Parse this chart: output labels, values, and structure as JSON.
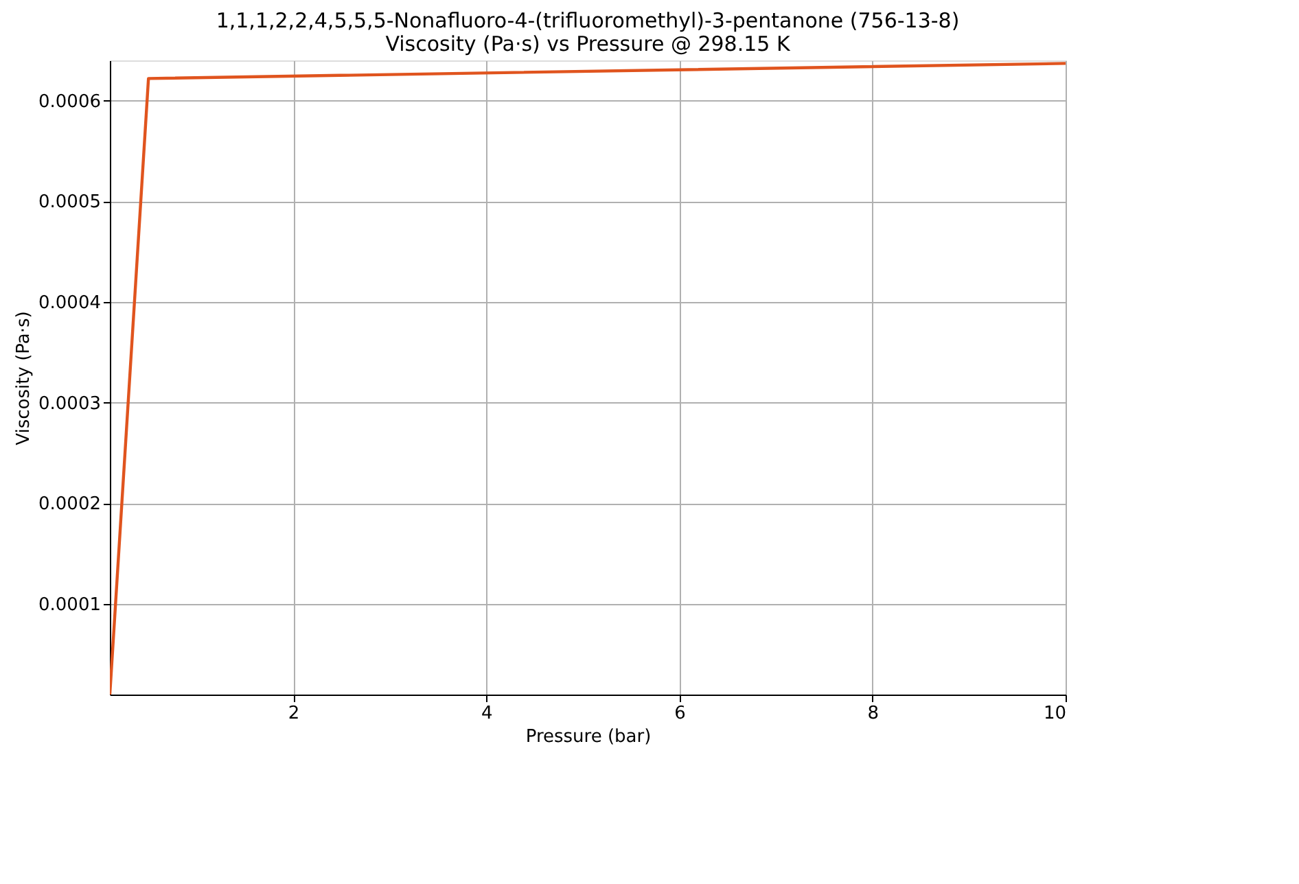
{
  "chart_data": {
    "type": "line",
    "title": "1,1,1,2,2,4,5,5,5-Nonafluoro-4-(trifluoromethyl)-3-pentanone (756-13-8)\nViscosity (Pa·s) vs Pressure @ 298.15 K",
    "xlabel": "Pressure (bar)",
    "ylabel": "Viscosity (Pa·s)",
    "x": [
      0.1,
      0.5,
      10
    ],
    "series": [
      {
        "color": "#e0541e",
        "values": [
          1e-05,
          0.000622,
          0.000637
        ]
      }
    ],
    "xlim": [
      0.1,
      10
    ],
    "xticks": [
      2,
      4,
      6,
      8,
      10
    ],
    "ylim": [
      1e-05,
      0.00064
    ],
    "yticks": [
      0.0001,
      0.0002,
      0.0003,
      0.0004,
      0.0005,
      0.0006
    ],
    "grid": true,
    "marker": "none",
    "line_style": "solid"
  }
}
